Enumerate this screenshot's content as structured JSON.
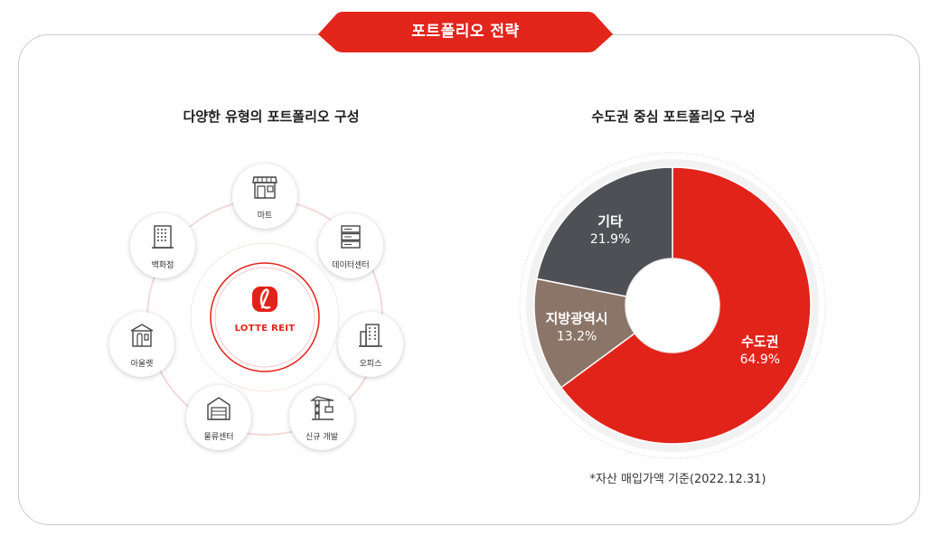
{
  "header": {
    "title": "포트폴리오 전략"
  },
  "left": {
    "title": "다양한 유형의 포트폴리오 구성",
    "logo_text": "LOTTE REIT",
    "items": [
      {
        "label": "마트",
        "icon": "store-icon"
      },
      {
        "label": "데이터센터",
        "icon": "server-icon"
      },
      {
        "label": "오피스",
        "icon": "office-building-icon"
      },
      {
        "label": "신규 개발",
        "icon": "crane-icon"
      },
      {
        "label": "물류센터",
        "icon": "warehouse-icon"
      },
      {
        "label": "아울렛",
        "icon": "outlet-icon"
      },
      {
        "label": "백화점",
        "icon": "department-store-icon"
      }
    ]
  },
  "right": {
    "title": "수도권 중심 포트폴리오 구성",
    "note": "*자산 매입가액 기준(2022.12.31)"
  },
  "colors": {
    "accent": "#e2231a",
    "dark": "#4e5055",
    "brown": "#8b7568"
  },
  "chart_data": {
    "type": "pie",
    "title": "수도권 중심 포트폴리오 구성",
    "categories": [
      "수도권",
      "지방광역시",
      "기타"
    ],
    "values": [
      64.9,
      13.2,
      21.9
    ],
    "value_labels": [
      "64.9%",
      "13.2%",
      "21.9%"
    ],
    "colors": [
      "#e2231a",
      "#8b7568",
      "#4e5055"
    ],
    "style": "donut"
  }
}
